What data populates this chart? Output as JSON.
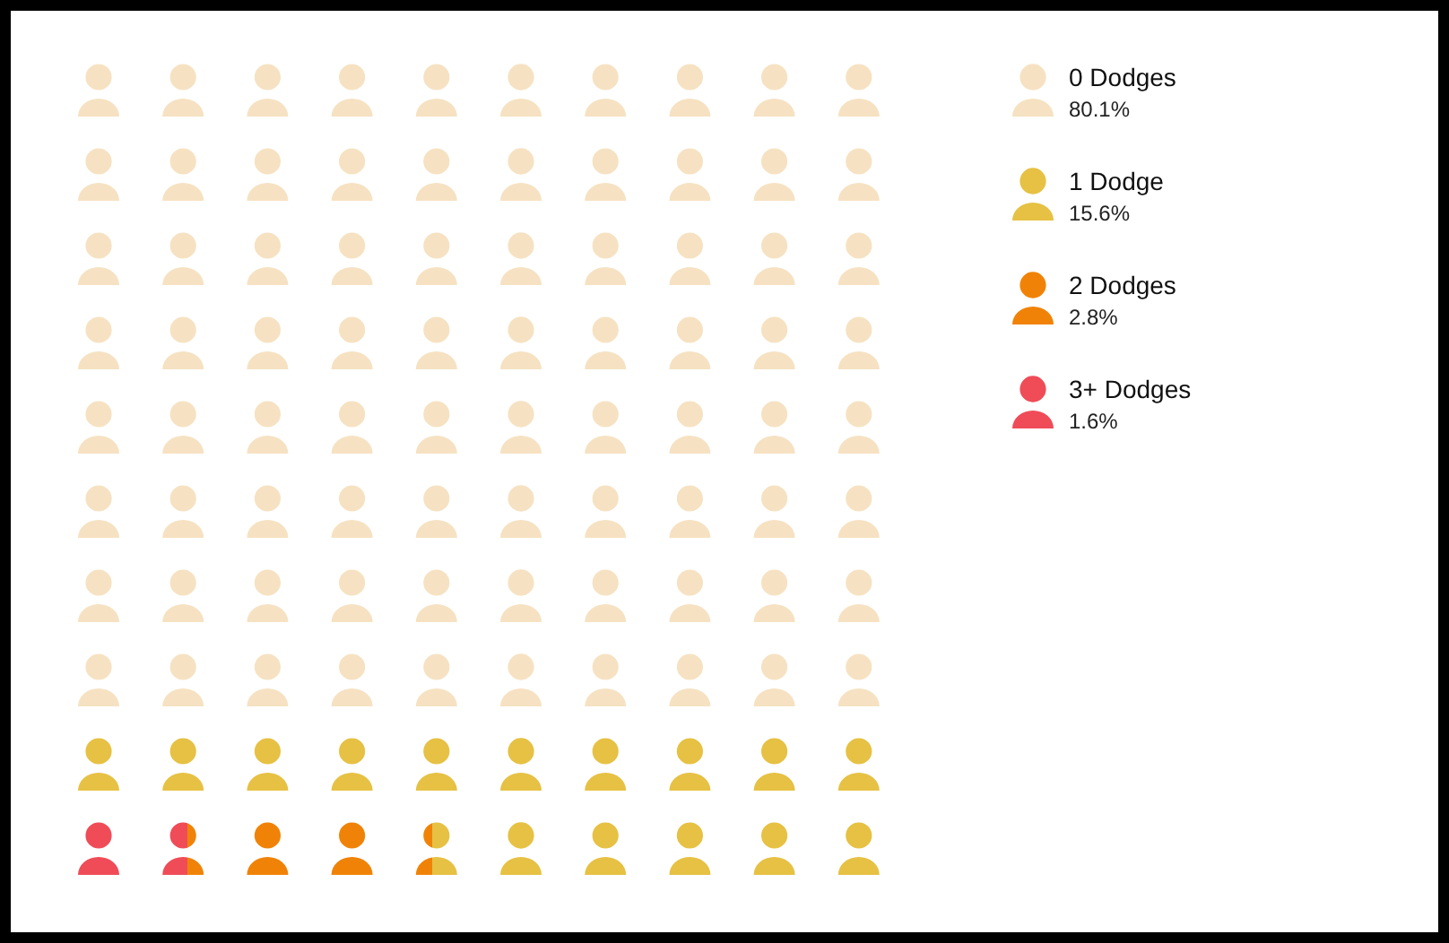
{
  "chart_data": {
    "type": "other",
    "categories": [
      "0 Dodges",
      "1 Dodge",
      "2 Dodges",
      "3+ Dodges"
    ],
    "values": [
      80.1,
      15.6,
      2.8,
      1.6
    ],
    "value_labels": [
      "80.1%",
      "15.6%",
      "2.8%",
      "1.6%"
    ],
    "colors": [
      "#f6e2c2",
      "#e6c143",
      "#f08307",
      "#ef4c58"
    ]
  }
}
